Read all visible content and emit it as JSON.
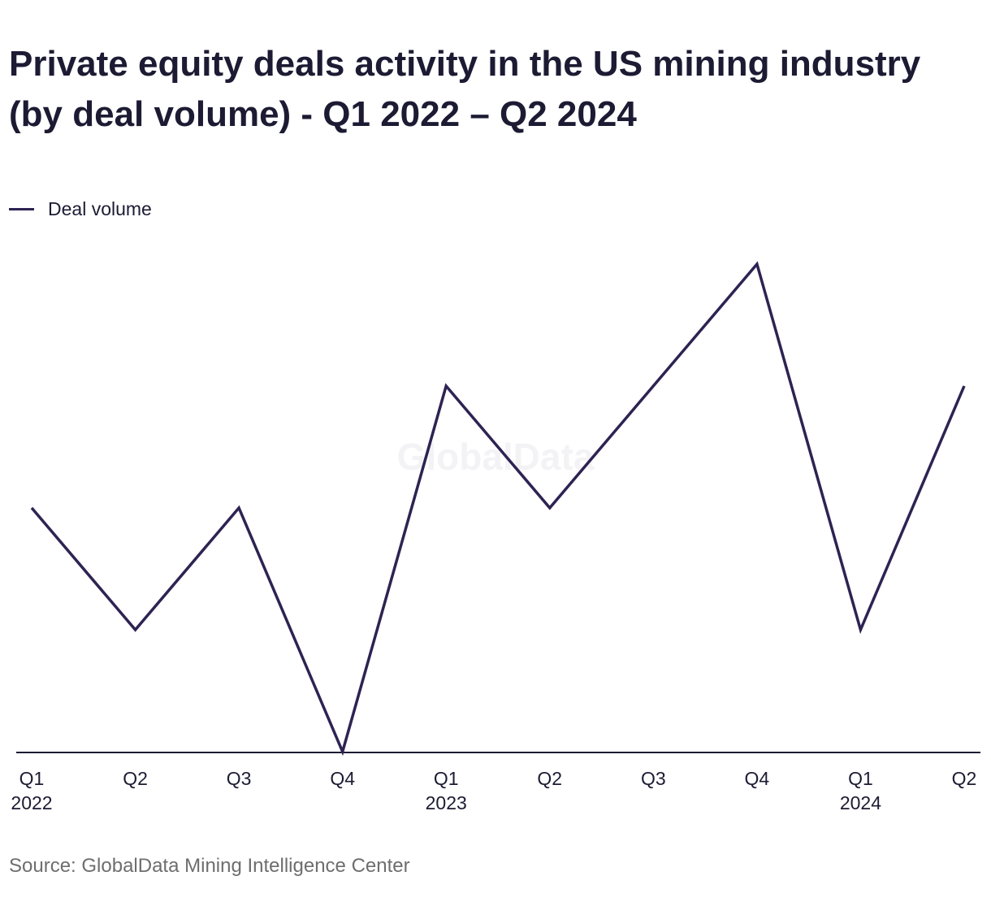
{
  "title": "Private equity deals activity in the US mining industry (by deal volume) - Q1 2022 – Q2 2024",
  "legend": {
    "label": "Deal volume"
  },
  "source": "Source: GlobalData Mining Intelligence Center",
  "watermark": "GlobalData",
  "colors": {
    "line": "#2e2352",
    "axis": "#1c1b33",
    "text": "#1c1b33",
    "source": "#6e6e6e"
  },
  "chart_data": {
    "type": "line",
    "categories": [
      "Q1 2022",
      "Q2 2022",
      "Q3 2022",
      "Q4 2022",
      "Q1 2023",
      "Q2 2023",
      "Q3 2023",
      "Q4 2023",
      "Q1 2024",
      "Q2 2024"
    ],
    "x_tick_labels": [
      [
        "Q1",
        "2022"
      ],
      [
        "Q2",
        ""
      ],
      [
        "Q3",
        ""
      ],
      [
        "Q4",
        ""
      ],
      [
        "Q1",
        "2023"
      ],
      [
        "Q2",
        ""
      ],
      [
        "Q3",
        ""
      ],
      [
        "Q4",
        ""
      ],
      [
        "Q1",
        "2024"
      ],
      [
        "Q2",
        ""
      ]
    ],
    "series": [
      {
        "name": "Deal volume",
        "values": [
          2,
          1,
          2,
          0,
          3,
          2,
          3,
          4,
          1,
          3
        ]
      }
    ],
    "ylim": [
      0,
      4
    ],
    "y_axis_visible": false,
    "grid": false,
    "legend_position": "top-left"
  }
}
